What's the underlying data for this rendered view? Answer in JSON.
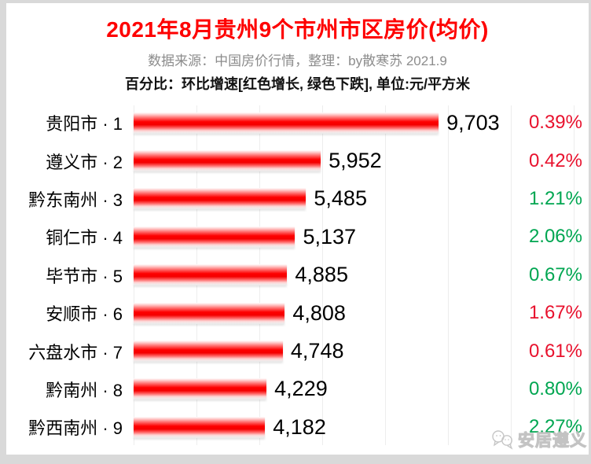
{
  "header": {
    "title": "2021年8月贵州9个市州市区房价(均价)",
    "subtitle": "数据来源：中国房价行情，整理：by散寒苏 2021.9",
    "note": "百分比：环比增速[红色增长, 绿色下跌], 单位:元/平方米"
  },
  "colors": {
    "title_red": "#fe0000",
    "bar_red": "#fe0000",
    "increase_red": "#e8112d",
    "decrease_green": "#00a651",
    "subtitle_gray": "#8c8c8c",
    "gridline_gray": "#ededed",
    "frame_gray": "#d9d9d9"
  },
  "watermark": {
    "text": "安居遵义",
    "icon": "chat-bubbles-mascot-icon"
  },
  "chart_data": {
    "type": "bar",
    "orientation": "horizontal",
    "title": "2021年8月贵州9个市州市区房价(均价)",
    "unit": "元/平方米",
    "categories": [
      "贵阳市 · 1",
      "遵义市 · 2",
      "黔东南州 · 3",
      "铜仁市 · 4",
      "毕节市 · 5",
      "安顺市 · 6",
      "六盘水市 · 7",
      "黔南州 · 8",
      "黔西南州 · 9"
    ],
    "values": [
      9703,
      5952,
      5485,
      5137,
      4885,
      4808,
      4748,
      4229,
      4182
    ],
    "value_labels": [
      "9,703",
      "5,952",
      "5,485",
      "5,137",
      "4,885",
      "4,808",
      "4,748",
      "4,229",
      "4,182"
    ],
    "mom_change_percents": [
      "0.39%",
      "0.42%",
      "1.21%",
      "2.06%",
      "0.67%",
      "1.67%",
      "0.61%",
      "0.80%",
      "2.27%"
    ],
    "mom_change_direction": [
      "increase",
      "increase",
      "decrease",
      "decrease",
      "decrease",
      "increase",
      "increase",
      "decrease",
      "decrease"
    ],
    "xlim": [
      0,
      14000
    ],
    "grid_step": 2000,
    "grid": true,
    "legend_position": "none"
  }
}
